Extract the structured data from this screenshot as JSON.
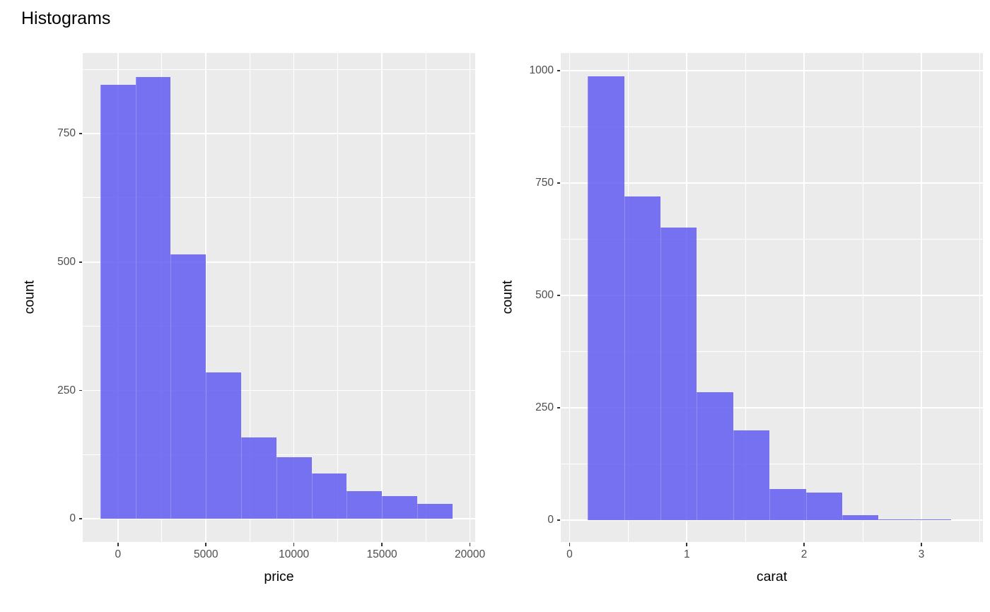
{
  "title": "Histograms",
  "colors": {
    "bar_fill_rgba": "rgba(90,86,240,0.82)",
    "bar_edge_rgba": "rgba(255,255,255,0.22)",
    "panel_bg": "#EBEBEB",
    "grid": "#FFFFFF",
    "axis_text": "#4D4D4D",
    "tick_mark": "#333333",
    "axis_title": "#000000",
    "title_color": "#000000",
    "plot_bg": "#FFFFFF"
  },
  "chart_data": [
    {
      "type": "bar",
      "variant": "histogram",
      "title": "",
      "xlabel": "price",
      "ylabel": "count",
      "bin_edges": [
        -1000,
        1000,
        3000,
        5000,
        7000,
        9000,
        11000,
        13000,
        15000,
        17000,
        19000
      ],
      "counts": [
        845,
        860,
        515,
        285,
        158,
        120,
        88,
        54,
        45,
        29
      ],
      "x_tick_values": [
        0,
        5000,
        10000,
        15000,
        20000
      ],
      "x_tick_labels": [
        "0",
        "5000",
        "10000",
        "15000",
        "20000"
      ],
      "y_tick_values": [
        0,
        250,
        500,
        750
      ],
      "y_tick_labels": [
        "0",
        "250",
        "500",
        "750"
      ],
      "xlim": [
        -2000,
        20300
      ],
      "ylim": [
        -45,
        907
      ],
      "grid": true,
      "legend": "none"
    },
    {
      "type": "bar",
      "variant": "histogram",
      "title": "",
      "xlabel": "carat",
      "ylabel": "count",
      "bin_edges": [
        0.155,
        0.465,
        0.775,
        1.085,
        1.395,
        1.705,
        2.015,
        2.325,
        2.635,
        2.945,
        3.255
      ],
      "counts": [
        987,
        720,
        651,
        285,
        200,
        69,
        61,
        11,
        2,
        1
      ],
      "x_tick_values": [
        0,
        1,
        2,
        3
      ],
      "x_tick_labels": [
        "0",
        "1",
        "2",
        "3"
      ],
      "y_tick_values": [
        0,
        250,
        500,
        750,
        1000
      ],
      "y_tick_labels": [
        "0",
        "250",
        "500",
        "750",
        "1000"
      ],
      "xlim": [
        -0.075,
        3.525
      ],
      "ylim": [
        -49,
        1039
      ],
      "grid": true,
      "legend": "none"
    }
  ]
}
